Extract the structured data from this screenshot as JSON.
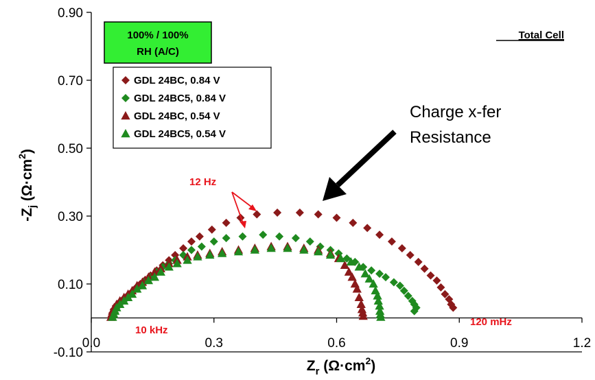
{
  "chart_data": {
    "type": "scatter",
    "xlabel": "Z",
    "xlabel_sub": "r",
    "xlabel_unit": " (Ω·cm",
    "xlabel_sup": "2",
    "xlabel_close": ")",
    "ylabel": "-Z",
    "ylabel_sub": "j",
    "ylabel_unit": " (Ω·cm",
    "ylabel_sup": "2",
    "ylabel_close": ")",
    "xlim": [
      0.0,
      1.2
    ],
    "ylim": [
      -0.1,
      0.9
    ],
    "x_ticks": [
      "0.0",
      "0.3",
      "0.6",
      "0.9",
      "1.2"
    ],
    "y_ticks": [
      "0.90",
      "0.70",
      "0.50",
      "0.30",
      "0.10",
      "-0.10"
    ],
    "x_tick_values": [
      0.0,
      0.3,
      0.6,
      0.9,
      1.2
    ],
    "y_tick_values": [
      0.9,
      0.7,
      0.5,
      0.3,
      0.1,
      -0.1
    ],
    "legend_placement": "top-left",
    "series": [
      {
        "name": "GDL 24BC, 0.84 V",
        "marker": "diamond",
        "color": "#8b1a1a",
        "points": [
          [
            0.05,
            0.005
          ],
          [
            0.052,
            0.015
          ],
          [
            0.055,
            0.025
          ],
          [
            0.06,
            0.035
          ],
          [
            0.068,
            0.045
          ],
          [
            0.078,
            0.055
          ],
          [
            0.088,
            0.065
          ],
          [
            0.098,
            0.075
          ],
          [
            0.11,
            0.09
          ],
          [
            0.12,
            0.1
          ],
          [
            0.132,
            0.112
          ],
          [
            0.145,
            0.125
          ],
          [
            0.16,
            0.14
          ],
          [
            0.175,
            0.155
          ],
          [
            0.19,
            0.17
          ],
          [
            0.205,
            0.185
          ],
          [
            0.225,
            0.205
          ],
          [
            0.245,
            0.225
          ],
          [
            0.265,
            0.24
          ],
          [
            0.295,
            0.26
          ],
          [
            0.33,
            0.28
          ],
          [
            0.365,
            0.295
          ],
          [
            0.405,
            0.305
          ],
          [
            0.455,
            0.31
          ],
          [
            0.51,
            0.31
          ],
          [
            0.555,
            0.305
          ],
          [
            0.6,
            0.295
          ],
          [
            0.64,
            0.28
          ],
          [
            0.675,
            0.265
          ],
          [
            0.705,
            0.245
          ],
          [
            0.735,
            0.225
          ],
          [
            0.76,
            0.205
          ],
          [
            0.78,
            0.185
          ],
          [
            0.8,
            0.165
          ],
          [
            0.815,
            0.145
          ],
          [
            0.83,
            0.125
          ],
          [
            0.845,
            0.11
          ],
          [
            0.855,
            0.09
          ],
          [
            0.865,
            0.07
          ],
          [
            0.875,
            0.055
          ],
          [
            0.88,
            0.04
          ],
          [
            0.885,
            0.03
          ]
        ]
      },
      {
        "name": "GDL 24BC5, 0.84 V",
        "marker": "diamond",
        "color": "#1f8a1f",
        "points": [
          [
            0.055,
            0.005
          ],
          [
            0.058,
            0.015
          ],
          [
            0.062,
            0.03
          ],
          [
            0.068,
            0.04
          ],
          [
            0.078,
            0.05
          ],
          [
            0.088,
            0.06
          ],
          [
            0.1,
            0.075
          ],
          [
            0.115,
            0.09
          ],
          [
            0.13,
            0.105
          ],
          [
            0.145,
            0.12
          ],
          [
            0.16,
            0.135
          ],
          [
            0.175,
            0.15
          ],
          [
            0.19,
            0.16
          ],
          [
            0.205,
            0.17
          ],
          [
            0.225,
            0.185
          ],
          [
            0.245,
            0.2
          ],
          [
            0.27,
            0.21
          ],
          [
            0.3,
            0.225
          ],
          [
            0.33,
            0.235
          ],
          [
            0.37,
            0.24
          ],
          [
            0.42,
            0.245
          ],
          [
            0.46,
            0.24
          ],
          [
            0.5,
            0.235
          ],
          [
            0.535,
            0.225
          ],
          [
            0.56,
            0.21
          ],
          [
            0.585,
            0.2
          ],
          [
            0.605,
            0.19
          ],
          [
            0.625,
            0.175
          ],
          [
            0.645,
            0.165
          ],
          [
            0.665,
            0.15
          ],
          [
            0.685,
            0.14
          ],
          [
            0.705,
            0.13
          ],
          [
            0.72,
            0.12
          ],
          [
            0.74,
            0.105
          ],
          [
            0.755,
            0.095
          ],
          [
            0.765,
            0.08
          ],
          [
            0.775,
            0.065
          ],
          [
            0.785,
            0.05
          ],
          [
            0.79,
            0.04
          ],
          [
            0.795,
            0.03
          ],
          [
            0.79,
            0.02
          ]
        ]
      },
      {
        "name": "GDL 24BC, 0.54 V",
        "marker": "triangle",
        "color": "#8b1a1a",
        "points": [
          [
            0.048,
            0.002
          ],
          [
            0.05,
            0.01
          ],
          [
            0.052,
            0.02
          ],
          [
            0.056,
            0.03
          ],
          [
            0.062,
            0.04
          ],
          [
            0.07,
            0.05
          ],
          [
            0.08,
            0.06
          ],
          [
            0.09,
            0.07
          ],
          [
            0.1,
            0.08
          ],
          [
            0.112,
            0.095
          ],
          [
            0.125,
            0.105
          ],
          [
            0.14,
            0.12
          ],
          [
            0.155,
            0.135
          ],
          [
            0.17,
            0.145
          ],
          [
            0.19,
            0.16
          ],
          [
            0.21,
            0.17
          ],
          [
            0.235,
            0.18
          ],
          [
            0.26,
            0.185
          ],
          [
            0.29,
            0.19
          ],
          [
            0.32,
            0.195
          ],
          [
            0.36,
            0.2
          ],
          [
            0.4,
            0.205
          ],
          [
            0.44,
            0.21
          ],
          [
            0.48,
            0.21
          ],
          [
            0.52,
            0.205
          ],
          [
            0.555,
            0.2
          ],
          [
            0.585,
            0.19
          ],
          [
            0.605,
            0.175
          ],
          [
            0.62,
            0.155
          ],
          [
            0.63,
            0.135
          ],
          [
            0.638,
            0.12
          ],
          [
            0.645,
            0.1
          ],
          [
            0.65,
            0.085
          ],
          [
            0.655,
            0.06
          ],
          [
            0.66,
            0.04
          ],
          [
            0.662,
            0.025
          ],
          [
            0.664,
            0.015
          ],
          [
            0.665,
            0.005
          ]
        ]
      },
      {
        "name": "GDL 24BC5, 0.54 V",
        "marker": "triangle",
        "color": "#1f8a1f",
        "points": [
          [
            0.052,
            0.002
          ],
          [
            0.055,
            0.01
          ],
          [
            0.058,
            0.02
          ],
          [
            0.062,
            0.03
          ],
          [
            0.07,
            0.04
          ],
          [
            0.08,
            0.05
          ],
          [
            0.09,
            0.06
          ],
          [
            0.1,
            0.07
          ],
          [
            0.112,
            0.085
          ],
          [
            0.125,
            0.095
          ],
          [
            0.14,
            0.11
          ],
          [
            0.155,
            0.12
          ],
          [
            0.17,
            0.135
          ],
          [
            0.19,
            0.15
          ],
          [
            0.21,
            0.16
          ],
          [
            0.235,
            0.17
          ],
          [
            0.26,
            0.18
          ],
          [
            0.29,
            0.185
          ],
          [
            0.32,
            0.19
          ],
          [
            0.36,
            0.195
          ],
          [
            0.4,
            0.2
          ],
          [
            0.44,
            0.205
          ],
          [
            0.48,
            0.205
          ],
          [
            0.52,
            0.2
          ],
          [
            0.555,
            0.195
          ],
          [
            0.585,
            0.185
          ],
          [
            0.61,
            0.175
          ],
          [
            0.635,
            0.165
          ],
          [
            0.655,
            0.15
          ],
          [
            0.67,
            0.13
          ],
          [
            0.68,
            0.115
          ],
          [
            0.69,
            0.1
          ],
          [
            0.695,
            0.08
          ],
          [
            0.7,
            0.065
          ],
          [
            0.702,
            0.05
          ],
          [
            0.705,
            0.035
          ],
          [
            0.706,
            0.02
          ],
          [
            0.707,
            0.01
          ],
          [
            0.708,
            0.002
          ]
        ]
      }
    ],
    "badge": {
      "line1": "100% / 100%",
      "line2": "RH (A/C)",
      "color": "#33ee33"
    },
    "annotations": {
      "hz12": "12 Hz",
      "khz10": "10 kHz",
      "mhz120": "120 mHz",
      "charge_line1": "Charge x-fer",
      "charge_line2": "Resistance",
      "total_cell": "Total Cell"
    },
    "colors": {
      "red_annotation": "#e8141c",
      "dark_red": "#8b1a1a",
      "green": "#1f8a1f"
    }
  }
}
